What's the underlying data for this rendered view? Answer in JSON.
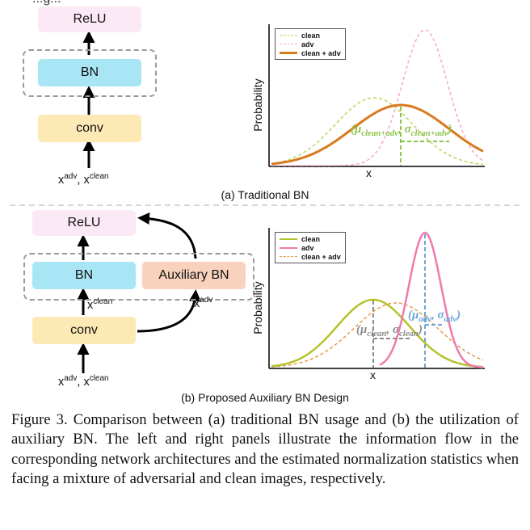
{
  "partial_top_text": "...g...",
  "panel_a": {
    "blocks": {
      "relu": "ReLU",
      "bn": "BN",
      "conv": "conv"
    },
    "input_label": {
      "base1": "x",
      "sup1": "adv",
      "sep": ", ",
      "base2": "x",
      "sup2": "clean"
    },
    "subtitle": "(a) Traditional BN",
    "chart": {
      "ylabel": "Probability",
      "xlabel": "x",
      "legend": [
        "clean",
        "adv",
        "clean + adv"
      ],
      "colors": {
        "clean": "#bfd35e",
        "adv": "#f4a9cb",
        "mix": "#d97a1e",
        "stat": "#8cc34a"
      },
      "annotation": {
        "open": "(",
        "mu": "μ",
        "mu_sub": "clean+adv",
        "comma": ", ",
        "sigma": "σ",
        "sigma_sub": "clean+adv",
        "close": ")"
      }
    }
  },
  "panel_b": {
    "blocks": {
      "relu": "ReLU",
      "bn": "BN",
      "aux_bn": "Auxiliary BN",
      "conv": "conv"
    },
    "input_label": {
      "base1": "x",
      "sup1": "adv",
      "sep": ", ",
      "base2": "x",
      "sup2": "clean"
    },
    "clean_label": {
      "base": "x",
      "sup": "clean"
    },
    "adv_label": {
      "base": "x",
      "sup": "adv"
    },
    "subtitle": "(b) Proposed Auxiliary BN Design",
    "chart": {
      "ylabel": "Probability",
      "xlabel": "x",
      "legend": [
        "clean",
        "adv",
        "clean + adv"
      ],
      "colors": {
        "clean": "#b6c22a",
        "adv": "#f07aae",
        "mix": "#e69a4c",
        "clean_stat": "#8a8a8a",
        "adv_stat": "#6aa6d8"
      },
      "annotation_clean": {
        "open": "(",
        "mu": "μ",
        "mu_sub": "clean",
        "comma": ", ",
        "sigma": "σ",
        "sigma_sub": "clean",
        "close": ")"
      },
      "annotation_adv": {
        "open": "(",
        "mu": "μ",
        "mu_sub": "adv",
        "comma": ", ",
        "sigma": "σ",
        "sigma_sub": "adv",
        "close": ")"
      }
    }
  },
  "caption": "Figure 3. Comparison between (a) traditional BN usage and (b) the utilization of auxiliary BN. The left and right panels illustrate the information flow in the corresponding network architectures and the estimated normalization statistics when facing a mixture of adversarial and clean images, respectively."
}
